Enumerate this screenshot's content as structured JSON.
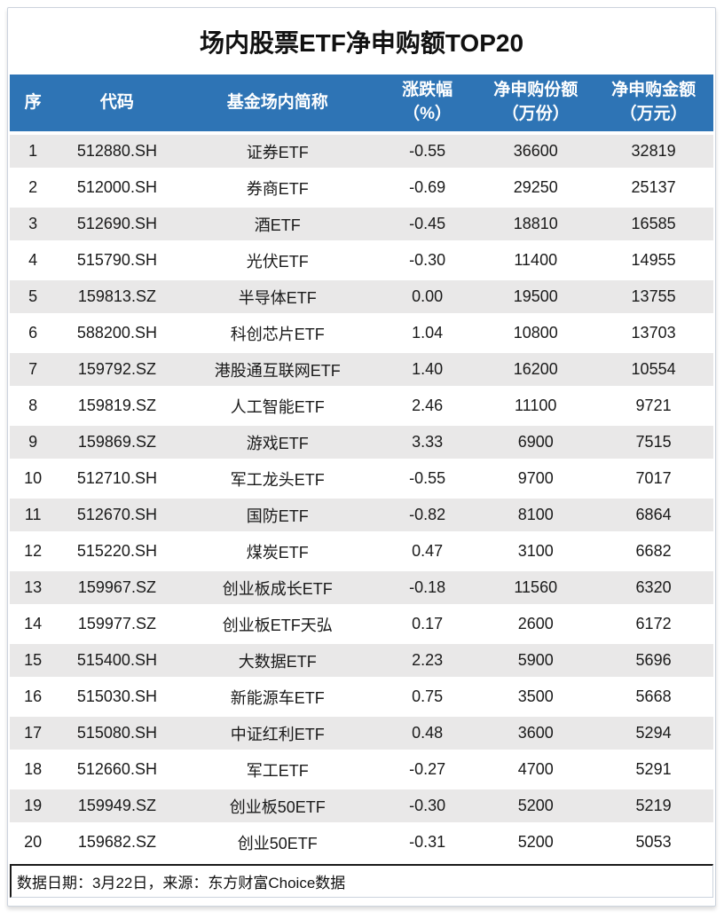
{
  "title": "场内股票ETF净申购额TOP20",
  "table": {
    "columns": [
      {
        "label": "序",
        "sub": ""
      },
      {
        "label": "代码",
        "sub": ""
      },
      {
        "label": "基金场内简称",
        "sub": ""
      },
      {
        "label": "涨跌幅",
        "sub": "（%）"
      },
      {
        "label": "净申购份额",
        "sub": "（万份）"
      },
      {
        "label": "净申购金额",
        "sub": "（万元）"
      }
    ]
  },
  "chart_data": {
    "type": "table",
    "title": "场内股票ETF净申购额TOP20",
    "columns": [
      "序",
      "代码",
      "基金场内简称",
      "涨跌幅（%）",
      "净申购份额（万份）",
      "净申购金额（万元）"
    ],
    "rows": [
      [
        "1",
        "512880.SH",
        "证券ETF",
        "-0.55",
        "36600",
        "32819"
      ],
      [
        "2",
        "512000.SH",
        "券商ETF",
        "-0.69",
        "29250",
        "25137"
      ],
      [
        "3",
        "512690.SH",
        "酒ETF",
        "-0.45",
        "18810",
        "16585"
      ],
      [
        "4",
        "515790.SH",
        "光伏ETF",
        "-0.30",
        "11400",
        "14955"
      ],
      [
        "5",
        "159813.SZ",
        "半导体ETF",
        "0.00",
        "19500",
        "13755"
      ],
      [
        "6",
        "588200.SH",
        "科创芯片ETF",
        "1.04",
        "10800",
        "13703"
      ],
      [
        "7",
        "159792.SZ",
        "港股通互联网ETF",
        "1.40",
        "16200",
        "10554"
      ],
      [
        "8",
        "159819.SZ",
        "人工智能ETF",
        "2.46",
        "11100",
        "9721"
      ],
      [
        "9",
        "159869.SZ",
        "游戏ETF",
        "3.33",
        "6900",
        "7515"
      ],
      [
        "10",
        "512710.SH",
        "军工龙头ETF",
        "-0.55",
        "9700",
        "7017"
      ],
      [
        "11",
        "512670.SH",
        "国防ETF",
        "-0.82",
        "8100",
        "6864"
      ],
      [
        "12",
        "515220.SH",
        "煤炭ETF",
        "0.47",
        "3100",
        "6682"
      ],
      [
        "13",
        "159967.SZ",
        "创业板成长ETF",
        "-0.18",
        "11560",
        "6320"
      ],
      [
        "14",
        "159977.SZ",
        "创业板ETF天弘",
        "0.17",
        "2600",
        "6172"
      ],
      [
        "15",
        "515400.SH",
        "大数据ETF",
        "2.23",
        "5900",
        "5696"
      ],
      [
        "16",
        "515030.SH",
        "新能源车ETF",
        "0.75",
        "3500",
        "5668"
      ],
      [
        "17",
        "515080.SH",
        "中证红利ETF",
        "0.48",
        "3600",
        "5294"
      ],
      [
        "18",
        "512660.SH",
        "军工ETF",
        "-0.27",
        "4700",
        "5291"
      ],
      [
        "19",
        "159949.SZ",
        "创业板50ETF",
        "-0.30",
        "5200",
        "5219"
      ],
      [
        "20",
        "159682.SZ",
        "创业50ETF",
        "-0.31",
        "5200",
        "5053"
      ]
    ]
  },
  "footer": {
    "note": "数据日期：3月22日，来源：东方财富Choice数据"
  },
  "colors": {
    "header_bg": "#2e74b5",
    "header_text": "#ffffff",
    "row_alt_bg": "#e9e8e8",
    "row_bg": "#ffffff",
    "text": "#1a1a1a",
    "card_border": "#ccd3dd",
    "footer_border": "#1a1a1a"
  }
}
